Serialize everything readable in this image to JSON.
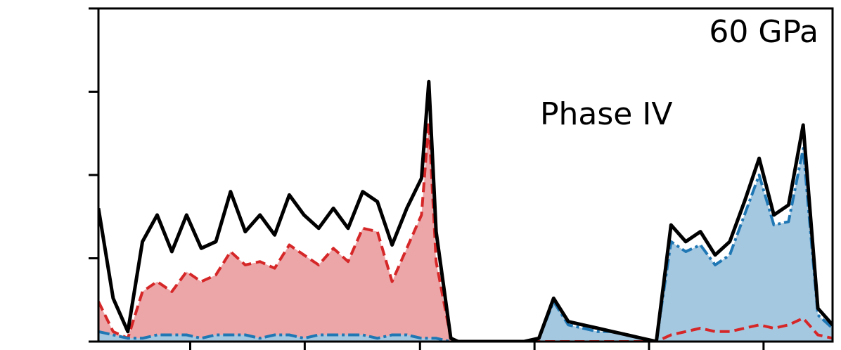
{
  "chart_data": {
    "type": "area",
    "title": "",
    "xlabel": "",
    "ylabel": "",
    "xlim": [
      0,
      1
    ],
    "ylim": [
      0,
      1
    ],
    "tick_labels_visible": false,
    "annotations": {
      "pressure": "60 GPa",
      "phase": "Phase IV"
    },
    "colors": {
      "total": "#000000",
      "red_line": "#d62728",
      "red_fill": "#eda6a8",
      "blue_line": "#1f77b4",
      "blue_fill": "#a5c8e1"
    },
    "x": [
      0.0,
      0.02,
      0.04,
      0.06,
      0.08,
      0.1,
      0.12,
      0.14,
      0.16,
      0.18,
      0.2,
      0.22,
      0.24,
      0.26,
      0.28,
      0.3,
      0.32,
      0.34,
      0.36,
      0.38,
      0.4,
      0.42,
      0.44,
      0.45,
      0.46,
      0.48,
      0.49,
      0.5,
      0.52,
      0.54,
      0.56,
      0.58,
      0.6,
      0.62,
      0.64,
      0.66,
      0.68,
      0.7,
      0.72,
      0.74,
      0.76,
      0.78,
      0.8,
      0.82,
      0.84,
      0.86,
      0.88,
      0.9,
      0.92,
      0.94,
      0.96,
      0.98,
      1.0
    ],
    "series": [
      {
        "kind": "total",
        "values": [
          0.4,
          0.13,
          0.03,
          0.3,
          0.38,
          0.27,
          0.38,
          0.28,
          0.3,
          0.45,
          0.33,
          0.38,
          0.32,
          0.44,
          0.38,
          0.34,
          0.4,
          0.34,
          0.45,
          0.42,
          0.29,
          0.4,
          0.49,
          0.78,
          0.33,
          0.01,
          0.0,
          0.0,
          0.0,
          0.0,
          0.0,
          0.0,
          0.01,
          0.13,
          0.06,
          0.05,
          0.04,
          0.03,
          0.02,
          0.01,
          0.0,
          0.35,
          0.3,
          0.33,
          0.26,
          0.3,
          0.42,
          0.55,
          0.38,
          0.41,
          0.65,
          0.1,
          0.05
        ]
      },
      {
        "kind": "red",
        "values": [
          0.12,
          0.03,
          0.01,
          0.15,
          0.18,
          0.15,
          0.21,
          0.18,
          0.2,
          0.27,
          0.23,
          0.24,
          0.22,
          0.29,
          0.26,
          0.23,
          0.28,
          0.24,
          0.34,
          0.33,
          0.18,
          0.28,
          0.38,
          0.66,
          0.24,
          0.01,
          0.0,
          0.0,
          0.0,
          0.0,
          0.0,
          0.0,
          0.0,
          0.0,
          0.0,
          0.0,
          0.0,
          0.0,
          0.0,
          0.0,
          0.0,
          0.02,
          0.03,
          0.04,
          0.03,
          0.03,
          0.04,
          0.05,
          0.04,
          0.05,
          0.07,
          0.02,
          0.01
        ]
      },
      {
        "kind": "blue",
        "values": [
          0.03,
          0.02,
          0.01,
          0.01,
          0.02,
          0.02,
          0.02,
          0.01,
          0.02,
          0.02,
          0.02,
          0.01,
          0.02,
          0.02,
          0.01,
          0.02,
          0.02,
          0.02,
          0.02,
          0.01,
          0.02,
          0.02,
          0.01,
          0.01,
          0.01,
          0.0,
          0.0,
          0.0,
          0.0,
          0.0,
          0.0,
          0.0,
          0.01,
          0.12,
          0.05,
          0.04,
          0.03,
          0.03,
          0.02,
          0.01,
          0.0,
          0.3,
          0.27,
          0.29,
          0.23,
          0.26,
          0.38,
          0.5,
          0.35,
          0.36,
          0.58,
          0.08,
          0.04
        ]
      }
    ]
  }
}
